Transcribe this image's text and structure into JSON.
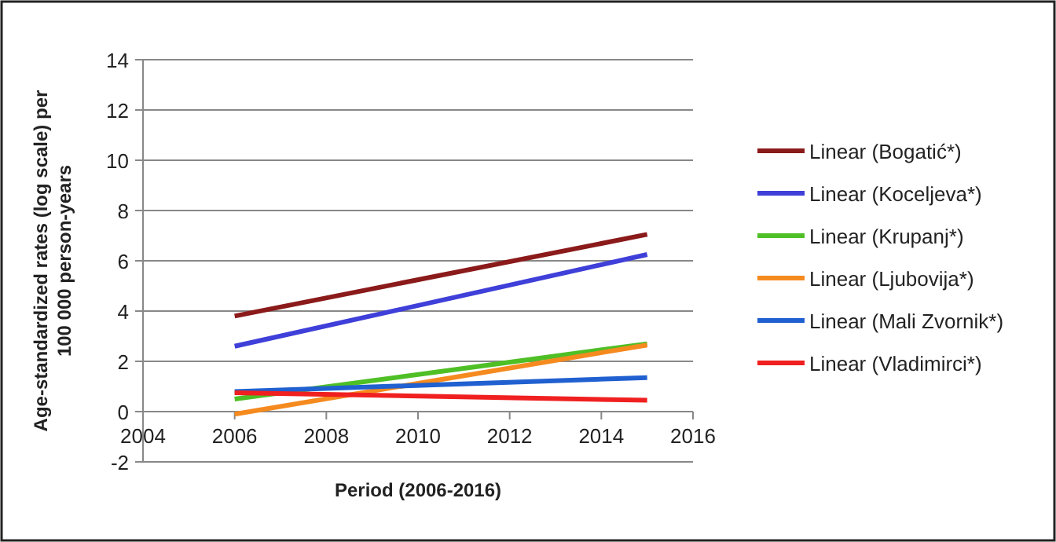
{
  "chart_data": {
    "type": "line",
    "xlabel": "Period (2006-2016)",
    "ylabel": "Age-standardized rates (log scale) per 100 000 person-years",
    "x": [
      2006,
      2015
    ],
    "series": [
      {
        "name": "Linear (Bogatić*)",
        "color": "#8b1a1a",
        "values": [
          3.8,
          7.05
        ]
      },
      {
        "name": "Linear (Koceljeva*)",
        "color": "#3f3fd9",
        "values": [
          2.6,
          6.25
        ]
      },
      {
        "name": "Linear (Krupanj*)",
        "color": "#4fbf26",
        "values": [
          0.5,
          2.7
        ]
      },
      {
        "name": "Linear (Ljubovija*)",
        "color": "#f58a1f",
        "values": [
          -0.1,
          2.65
        ]
      },
      {
        "name": "Linear (Mali Zvornik*)",
        "color": "#2060d0",
        "values": [
          0.8,
          1.35
        ]
      },
      {
        "name": "Linear (Vladimirci*)",
        "color": "#f02020",
        "values": [
          0.75,
          0.45
        ]
      }
    ],
    "xlim": [
      2004,
      2016
    ],
    "xticks": [
      2004,
      2006,
      2008,
      2010,
      2012,
      2014,
      2016
    ],
    "ylim": [
      -2,
      14
    ],
    "yticks": [
      -2,
      0,
      2,
      4,
      6,
      8,
      10,
      12,
      14
    ],
    "grid": "y",
    "legend": "right",
    "marker": "none",
    "line_style": "solid"
  }
}
